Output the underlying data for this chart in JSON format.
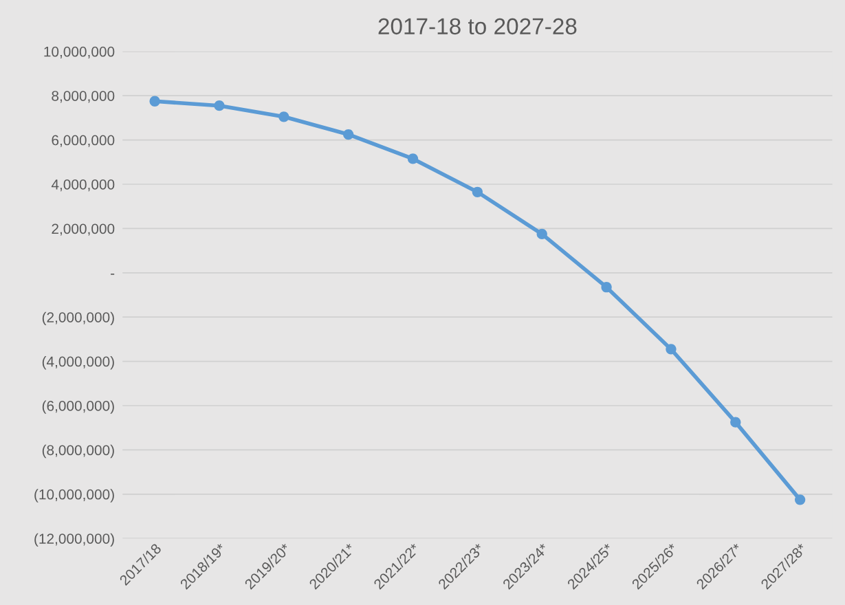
{
  "chart_data": {
    "type": "line",
    "title": "2017-18 to 2027-28",
    "categories": [
      "2017/18",
      "2018/19*",
      "2019/20*",
      "2020/21*",
      "2021/22*",
      "2022/23*",
      "2023/24*",
      "2024/25*",
      "2025/26*",
      "2026/27*",
      "2027/28*"
    ],
    "series": [
      {
        "color": "#5b9bd5",
        "values": [
          7750000,
          7550000,
          7050000,
          6250000,
          5150000,
          3650000,
          1750000,
          -650000,
          -3450000,
          -6750000,
          -10250000
        ]
      }
    ],
    "ylim": [
      -12000000,
      10000000
    ],
    "yticks": [
      {
        "value": -12000000,
        "label": "(12,000,000)"
      },
      {
        "value": -10000000,
        "label": "(10,000,000)"
      },
      {
        "value": -8000000,
        "label": "(8,000,000)"
      },
      {
        "value": -6000000,
        "label": "(6,000,000)"
      },
      {
        "value": -4000000,
        "label": "(4,000,000)"
      },
      {
        "value": -2000000,
        "label": "(2,000,000)"
      },
      {
        "value": 0,
        "label": "-"
      },
      {
        "value": 2000000,
        "label": "2,000,000"
      },
      {
        "value": 4000000,
        "label": "4,000,000"
      },
      {
        "value": 6000000,
        "label": "6,000,000"
      },
      {
        "value": 8000000,
        "label": "8,000,000"
      },
      {
        "value": 10000000,
        "label": "10,000,000"
      }
    ],
    "grid": "y",
    "marker": "circle",
    "line_style": "solid",
    "legend": false
  }
}
